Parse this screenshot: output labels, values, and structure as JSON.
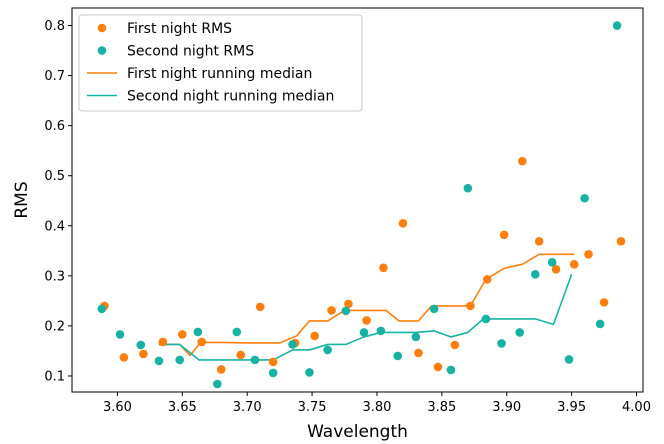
{
  "chart_data": {
    "type": "scatter",
    "title": "",
    "xlabel": "Wavelength",
    "ylabel": "RMS",
    "xlim": [
      3.565,
      4.005
    ],
    "ylim": [
      0.068,
      0.835
    ],
    "xticks": [
      "3.60",
      "3.65",
      "3.70",
      "3.75",
      "3.80",
      "3.85",
      "3.90",
      "3.95",
      "4.00"
    ],
    "yticks": [
      "0.1",
      "0.2",
      "0.3",
      "0.4",
      "0.5",
      "0.6",
      "0.7",
      "0.8"
    ],
    "grid": false,
    "legend_position": "top-left",
    "colors": {
      "first": "#ff7f0e",
      "second": "#17b2a2"
    },
    "series": [
      {
        "name": "First night RMS",
        "kind": "scatter",
        "color_key": "first",
        "points": [
          [
            3.59,
            0.24
          ],
          [
            3.605,
            0.137
          ],
          [
            3.62,
            0.144
          ],
          [
            3.635,
            0.168
          ],
          [
            3.65,
            0.183
          ],
          [
            3.665,
            0.168
          ],
          [
            3.68,
            0.113
          ],
          [
            3.695,
            0.142
          ],
          [
            3.71,
            0.238
          ],
          [
            3.72,
            0.128
          ],
          [
            3.737,
            0.166
          ],
          [
            3.752,
            0.18
          ],
          [
            3.765,
            0.231
          ],
          [
            3.778,
            0.244
          ],
          [
            3.792,
            0.211
          ],
          [
            3.805,
            0.316
          ],
          [
            3.82,
            0.405
          ],
          [
            3.832,
            0.146
          ],
          [
            3.847,
            0.118
          ],
          [
            3.86,
            0.162
          ],
          [
            3.872,
            0.24
          ],
          [
            3.885,
            0.293
          ],
          [
            3.898,
            0.382
          ],
          [
            3.912,
            0.529
          ],
          [
            3.925,
            0.369
          ],
          [
            3.938,
            0.313
          ],
          [
            3.952,
            0.323
          ],
          [
            3.963,
            0.343
          ],
          [
            3.975,
            0.247
          ],
          [
            3.988,
            0.369
          ]
        ]
      },
      {
        "name": "Second night RMS",
        "kind": "scatter",
        "color_key": "second",
        "points": [
          [
            3.588,
            0.234
          ],
          [
            3.602,
            0.183
          ],
          [
            3.618,
            0.162
          ],
          [
            3.632,
            0.13
          ],
          [
            3.648,
            0.132
          ],
          [
            3.662,
            0.188
          ],
          [
            3.677,
            0.084
          ],
          [
            3.692,
            0.188
          ],
          [
            3.706,
            0.132
          ],
          [
            3.72,
            0.106
          ],
          [
            3.735,
            0.163
          ],
          [
            3.748,
            0.107
          ],
          [
            3.762,
            0.152
          ],
          [
            3.776,
            0.23
          ],
          [
            3.79,
            0.187
          ],
          [
            3.803,
            0.19
          ],
          [
            3.816,
            0.14
          ],
          [
            3.83,
            0.178
          ],
          [
            3.844,
            0.234
          ],
          [
            3.857,
            0.112
          ],
          [
            3.87,
            0.475
          ],
          [
            3.884,
            0.214
          ],
          [
            3.896,
            0.165
          ],
          [
            3.91,
            0.187
          ],
          [
            3.922,
            0.303
          ],
          [
            3.935,
            0.327
          ],
          [
            3.948,
            0.133
          ],
          [
            3.96,
            0.455
          ],
          [
            3.972,
            0.204
          ],
          [
            3.985,
            0.8
          ]
        ]
      },
      {
        "name": "First night running median",
        "kind": "line",
        "color_key": "first",
        "points": [
          [
            3.632,
            0.163
          ],
          [
            3.648,
            0.163
          ],
          [
            3.656,
            0.141
          ],
          [
            3.664,
            0.167
          ],
          [
            3.68,
            0.167
          ],
          [
            3.7,
            0.166
          ],
          [
            3.725,
            0.166
          ],
          [
            3.738,
            0.18
          ],
          [
            3.748,
            0.21
          ],
          [
            3.762,
            0.21
          ],
          [
            3.775,
            0.231
          ],
          [
            3.8,
            0.231
          ],
          [
            3.807,
            0.231
          ],
          [
            3.817,
            0.21
          ],
          [
            3.832,
            0.21
          ],
          [
            3.842,
            0.24
          ],
          [
            3.87,
            0.24
          ],
          [
            3.872,
            0.24
          ],
          [
            3.884,
            0.293
          ],
          [
            3.898,
            0.315
          ],
          [
            3.912,
            0.323
          ],
          [
            3.925,
            0.343
          ],
          [
            3.94,
            0.343
          ],
          [
            3.952,
            0.343
          ]
        ]
      },
      {
        "name": "Second night running median",
        "kind": "line",
        "color_key": "second",
        "points": [
          [
            3.632,
            0.163
          ],
          [
            3.648,
            0.163
          ],
          [
            3.663,
            0.132
          ],
          [
            3.68,
            0.132
          ],
          [
            3.705,
            0.132
          ],
          [
            3.72,
            0.132
          ],
          [
            3.735,
            0.152
          ],
          [
            3.748,
            0.152
          ],
          [
            3.762,
            0.163
          ],
          [
            3.776,
            0.163
          ],
          [
            3.79,
            0.178
          ],
          [
            3.803,
            0.187
          ],
          [
            3.816,
            0.187
          ],
          [
            3.83,
            0.187
          ],
          [
            3.844,
            0.19
          ],
          [
            3.857,
            0.178
          ],
          [
            3.87,
            0.187
          ],
          [
            3.882,
            0.214
          ],
          [
            3.896,
            0.214
          ],
          [
            3.91,
            0.214
          ],
          [
            3.922,
            0.214
          ],
          [
            3.936,
            0.203
          ],
          [
            3.95,
            0.303
          ]
        ]
      }
    ]
  }
}
